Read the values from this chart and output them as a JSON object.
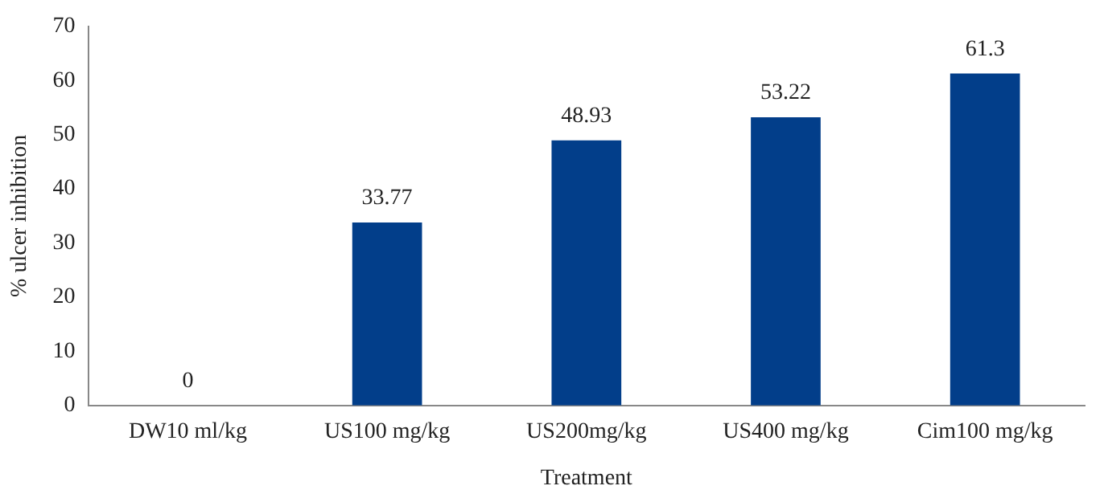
{
  "chart_data": {
    "type": "bar",
    "xlabel": "Treatment",
    "ylabel": "% ulcer inhibition",
    "categories": [
      "DW10 ml/kg",
      "US100 mg/kg",
      "US200mg/kg",
      "US400 mg/kg",
      "Cim100 mg/kg"
    ],
    "values": [
      0,
      33.77,
      48.93,
      53.22,
      61.3
    ],
    "color": "#023e8a",
    "ylim": [
      0,
      70
    ],
    "yticks": [
      0,
      10,
      20,
      30,
      40,
      50,
      60,
      70
    ],
    "grid": false,
    "legend": false,
    "data_labels": true
  }
}
